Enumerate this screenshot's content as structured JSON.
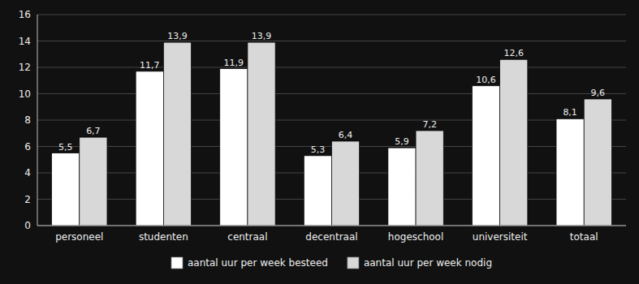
{
  "chart_data": {
    "type": "bar",
    "categories": [
      "personeel",
      "studenten",
      "centraal",
      "decentraal",
      "hogeschool",
      "universiteit",
      "totaal"
    ],
    "series": [
      {
        "name": "aantal uur per week besteed",
        "color": "#ffffff",
        "values": [
          5.5,
          11.7,
          11.9,
          5.3,
          5.9,
          10.6,
          8.1
        ],
        "value_labels": [
          "5,5",
          "11,7",
          "11,9",
          "5,3",
          "5,9",
          "10,6",
          "8,1"
        ]
      },
      {
        "name": "aantal uur per week nodig",
        "color": "#d8d8d8",
        "values": [
          6.7,
          13.9,
          13.9,
          6.4,
          7.2,
          12.6,
          9.6
        ],
        "value_labels": [
          "6,7",
          "13,9",
          "13,9",
          "6,4",
          "7,2",
          "12,6",
          "9,6"
        ]
      }
    ],
    "ylim": [
      0,
      16
    ],
    "yticks": [
      0,
      2,
      4,
      6,
      8,
      10,
      12,
      14,
      16
    ],
    "grid": true,
    "legend": "bottom",
    "data_labels": true
  }
}
